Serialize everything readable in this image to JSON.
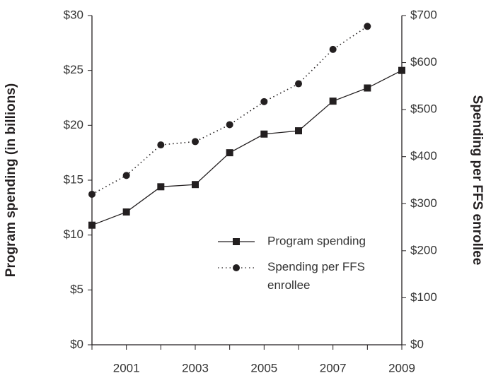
{
  "chart_data": {
    "type": "line",
    "y_label": "Program spending (in billions)",
    "y2_label": "Spending per FFS enrollee",
    "categories": [
      null,
      "2001",
      null,
      "2003",
      null,
      "2005",
      null,
      "2007",
      null,
      "2009"
    ],
    "series": [
      {
        "name": "Program spending",
        "color": "#231f20",
        "line_style": "solid",
        "marker": "square",
        "values": [
          10.9,
          12.1,
          14.4,
          14.6,
          17.5,
          19.2,
          19.5,
          22.2,
          23.4,
          25.0
        ]
      },
      {
        "name": "Spending per FFS enrollee",
        "color": "#231f20",
        "line_style": "dotted",
        "marker": "circle",
        "axis": "y2",
        "values": [
          320,
          360,
          425,
          432,
          468,
          517,
          555,
          628,
          677,
          null
        ]
      }
    ],
    "ylim": [
      0,
      30
    ],
    "yticks": [
      {
        "value": 0,
        "label": "$0"
      },
      {
        "value": 5,
        "label": "$5"
      },
      {
        "value": 10,
        "label": "$10"
      },
      {
        "value": 15,
        "label": "$15"
      },
      {
        "value": 20,
        "label": "$20"
      },
      {
        "value": 25,
        "label": "$25"
      },
      {
        "value": 30,
        "label": "$30"
      }
    ],
    "y2lim": [
      0,
      700
    ],
    "y2ticks": [
      {
        "value": 0,
        "label": "$0"
      },
      {
        "value": 100,
        "label": "$100"
      },
      {
        "value": 200,
        "label": "$200"
      },
      {
        "value": 300,
        "label": "$300"
      },
      {
        "value": 400,
        "label": "$400"
      },
      {
        "value": 500,
        "label": "$500"
      },
      {
        "value": 600,
        "label": "$600"
      },
      {
        "value": 700,
        "label": "$700"
      }
    ],
    "grid": false
  }
}
